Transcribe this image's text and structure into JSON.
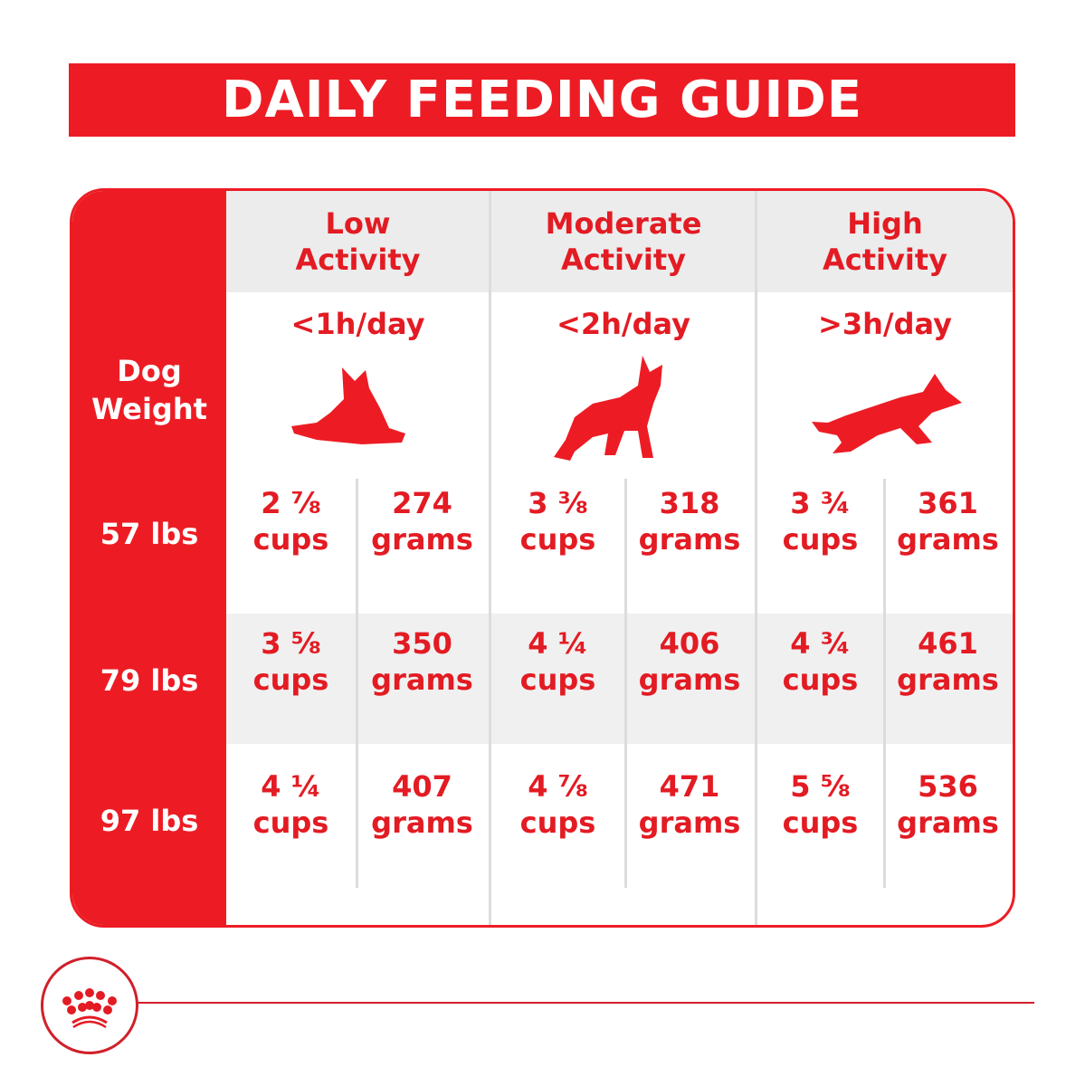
{
  "title": "DAILY FEEDING GUIDE",
  "weight_header": "Dog Weight",
  "columns": [
    {
      "label": "Low Activity",
      "time": "<1h/day",
      "icon": "lying-dog-icon"
    },
    {
      "label": "Moderate Activity",
      "time": "<2h/day",
      "icon": "standing-dog-icon"
    },
    {
      "label": "High Activity",
      "time": ">3h/day",
      "icon": "running-dog-icon"
    }
  ],
  "rows": [
    {
      "weight": "57 lbs",
      "values": [
        [
          "2 ⅞",
          "cups",
          "274",
          "grams"
        ],
        [
          "3 ⅜",
          "cups",
          "318",
          "grams"
        ],
        [
          "3 ¾",
          "cups",
          "361",
          "grams"
        ]
      ]
    },
    {
      "weight": "79 lbs",
      "values": [
        [
          "3 ⅝",
          "cups",
          "350",
          "grams"
        ],
        [
          "4 ¼",
          "cups",
          "406",
          "grams"
        ],
        [
          "4 ¾",
          "cups",
          "461",
          "grams"
        ]
      ]
    },
    {
      "weight": "97 lbs",
      "values": [
        [
          "4 ¼",
          "cups",
          "407",
          "grams"
        ],
        [
          "4 ⅞",
          "cups",
          "471",
          "grams"
        ],
        [
          "5 ⅝",
          "cups",
          "536",
          "grams"
        ]
      ]
    }
  ],
  "colors": {
    "brand_red": "#ed1c24",
    "grey": "#ececec"
  },
  "logo": "royal-canin-crown-icon"
}
